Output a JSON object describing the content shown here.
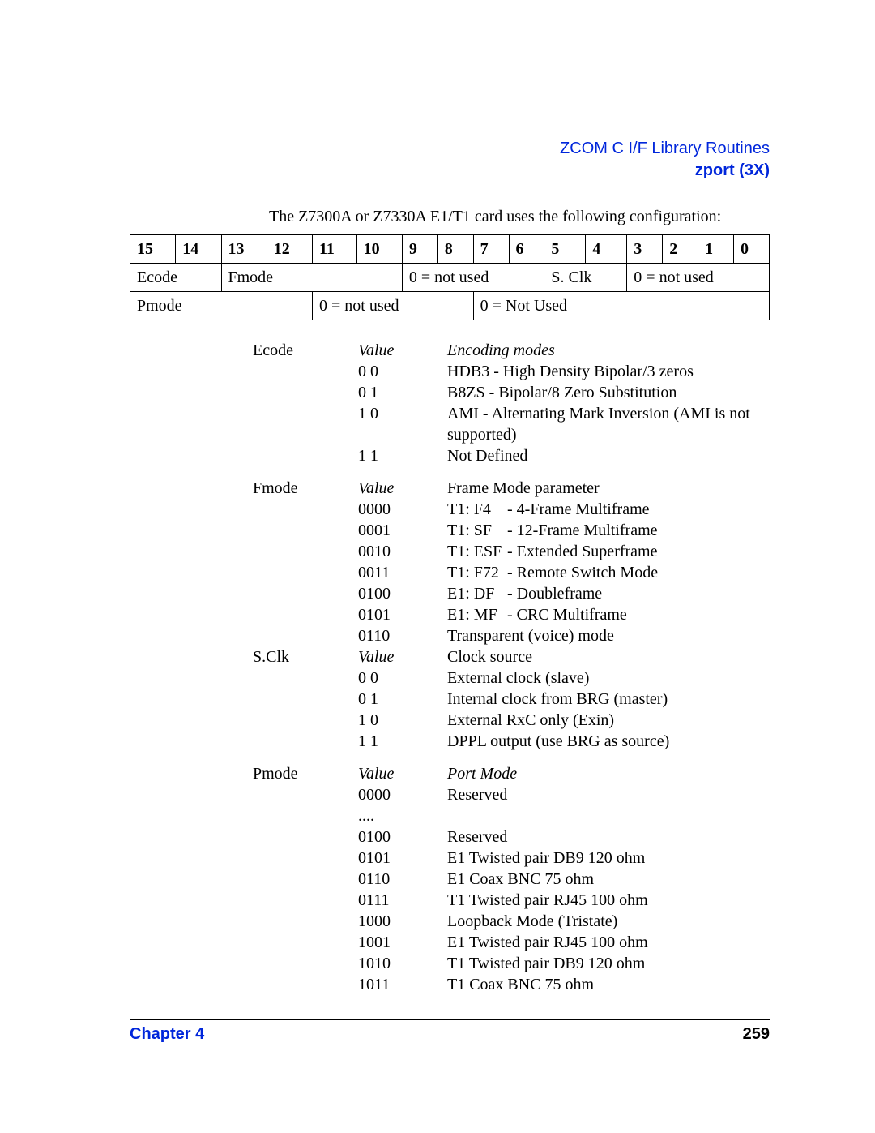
{
  "header": {
    "line1": "ZCOM C I/F Library Routines",
    "line2": "zport (3X)"
  },
  "intro": "The Z7300A or Z7330A E1/T1 card uses the following configuration:",
  "bitTable": {
    "headers": [
      "15",
      "14",
      "13",
      "12",
      "11",
      "10",
      "9",
      "8",
      "7",
      "6",
      "5",
      "4",
      "3",
      "2",
      "1",
      "0"
    ],
    "row1": {
      "ecode": "Ecode",
      "fmode": "Fmode",
      "notused1": "0 = not used",
      "sclk": "S. Clk",
      "notused2": "0 = not used"
    },
    "row2": {
      "pmode": "Pmode",
      "notused1": "0 = not used",
      "notused2": "0 = Not Used"
    }
  },
  "ecode": {
    "label": "Ecode",
    "valueHeader": "Value",
    "descHeader": "Encoding modes",
    "items": [
      {
        "v": "0 0",
        "d": "HDB3 - High Density Bipolar/3 zeros"
      },
      {
        "v": "0 1",
        "d": "B8ZS - Bipolar/8 Zero Substitution"
      },
      {
        "v": "1 0",
        "d": "AMI - Alternating Mark Inversion (AMI is not supported)"
      },
      {
        "v": "1 1",
        "d": "Not Defined"
      }
    ]
  },
  "fmode": {
    "label": "Fmode",
    "valueHeader": "Value",
    "descHeader": "Frame Mode parameter",
    "items": [
      {
        "v": "0000",
        "mode": "T1: F4",
        "d": "- 4-Frame Multiframe"
      },
      {
        "v": "0001",
        "mode": "T1: SF",
        "d": "- 12-Frame Multiframe"
      },
      {
        "v": "0010",
        "mode": "T1: ESF",
        "d": "- Extended Superframe"
      },
      {
        "v": "0011",
        "mode": "T1: F72",
        "d": "- Remote Switch Mode"
      },
      {
        "v": "0100",
        "mode": "E1: DF",
        "d": "- Doubleframe"
      },
      {
        "v": "0101",
        "mode": "E1: MF",
        "d": "- CRC Multiframe"
      },
      {
        "v": "0110",
        "mode": "",
        "d": "Transparent (voice) mode"
      }
    ]
  },
  "sclk": {
    "label": "S.Clk",
    "valueHeader": "Value",
    "descHeader": "Clock source",
    "items": [
      {
        "v": "0 0",
        "d": "External clock (slave)"
      },
      {
        "v": "0 1",
        "d": "Internal clock from BRG (master)"
      },
      {
        "v": "1 0",
        "d": "External RxC only (Exin)"
      },
      {
        "v": "1 1",
        "d": "DPPL output (use BRG as source)"
      }
    ]
  },
  "pmode": {
    "label": "Pmode",
    "valueHeader": "Value",
    "descHeader": "Port Mode",
    "items": [
      {
        "v": "0000",
        "d": "Reserved"
      },
      {
        "v": "....",
        "d": ""
      },
      {
        "v": "0100",
        "d": "Reserved"
      },
      {
        "v": "0101",
        "d": "E1 Twisted pair DB9 120 ohm"
      },
      {
        "v": "0110",
        "d": "E1 Coax BNC 75 ohm"
      },
      {
        "v": "0111",
        "d": "T1 Twisted pair RJ45 100 ohm"
      },
      {
        "v": "1000",
        "d": "Loopback Mode (Tristate)"
      },
      {
        "v": "1001",
        "d": "E1 Twisted pair RJ45 100 ohm"
      },
      {
        "v": "1010",
        "d": "T1 Twisted pair DB9 120 ohm"
      },
      {
        "v": "1011",
        "d": "T1 Coax BNC 75 ohm"
      }
    ]
  },
  "footer": {
    "chapter": "Chapter 4",
    "page": "259"
  },
  "style": {
    "link_color": "#0026db",
    "text_color": "#000000",
    "bg_color": "#ffffff",
    "serif_font": "Times New Roman",
    "sans_font": "Arial",
    "body_fontsize_pt": 15,
    "header_fontsize_pt": 15
  }
}
